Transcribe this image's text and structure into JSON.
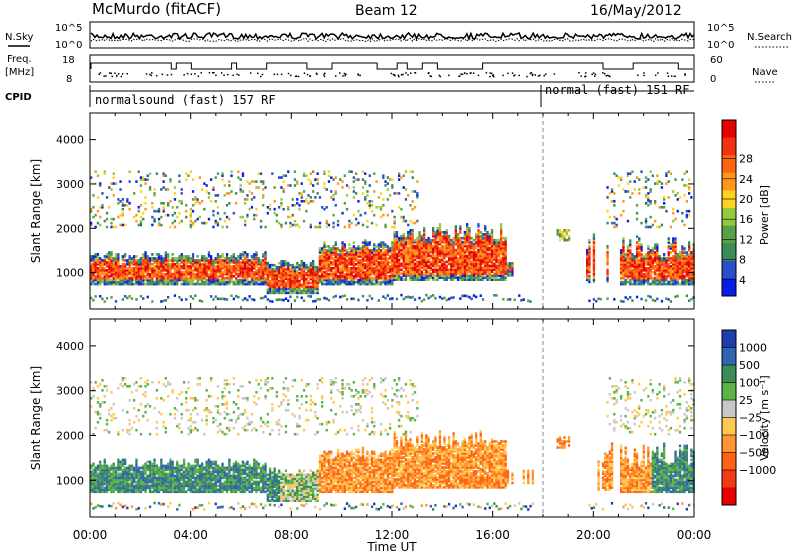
{
  "header": {
    "station": "McMurdo (fitACF)",
    "beam": "Beam 12",
    "date": "16/May/2012"
  },
  "aux_panels": {
    "left_labels": [
      "N.Sky",
      "Freq.",
      "[MHz]",
      "CPID"
    ],
    "right_labels": [
      "N.Search",
      "Nave"
    ],
    "noise_ticks": [
      "10^5",
      "10^0"
    ],
    "freq_ticks": [
      "18",
      "8"
    ],
    "nave_ticks": [
      "60",
      "0"
    ],
    "cpid_segments": [
      "normalsound (fast) 157 RF",
      "normal (fast) 151 RF"
    ]
  },
  "chart_data": [
    {
      "type": "heatmap",
      "ylabel": "Slant Range [km]",
      "xlabel": "",
      "x_ticks": [
        "00:00",
        "04:00",
        "08:00",
        "12:00",
        "16:00",
        "20:00",
        "00:00"
      ],
      "y_ticks": [
        1000,
        2000,
        3000,
        4000
      ],
      "xlim_hours": [
        0,
        24
      ],
      "ylim_km": [
        180,
        4600
      ],
      "colorbar": {
        "label": "Power [dB]",
        "tick_labels": [
          "4",
          "8",
          "12",
          "16",
          "20",
          "24",
          "28"
        ],
        "colors": [
          "#0a1ee6",
          "#2850c8",
          "#3c8c5a",
          "#5aa046",
          "#96c83c",
          "#ffd21e",
          "#ff9619",
          "#ff6414",
          "#f03210",
          "#e60000"
        ]
      }
    },
    {
      "type": "heatmap",
      "ylabel": "Slant Range [km]",
      "xlabel": "Time UT",
      "x_ticks": [
        "00:00",
        "04:00",
        "08:00",
        "12:00",
        "16:00",
        "20:00",
        "00:00"
      ],
      "y_ticks": [
        1000,
        2000,
        3000,
        4000
      ],
      "xlim_hours": [
        0,
        24
      ],
      "ylim_km": [
        180,
        4600
      ],
      "colorbar": {
        "label": "Velocity [m s⁻¹]",
        "tick_labels": [
          "1000",
          "500",
          "100",
          "25",
          "−25",
          "−100",
          "−500",
          "−1000"
        ],
        "colors": [
          "#1e3caa",
          "#3264b4",
          "#3c8c5a",
          "#5ab446",
          "#c8c8c8",
          "#ffc850",
          "#ff9632",
          "#ff6414",
          "#f03c14",
          "#e60000"
        ]
      }
    }
  ]
}
